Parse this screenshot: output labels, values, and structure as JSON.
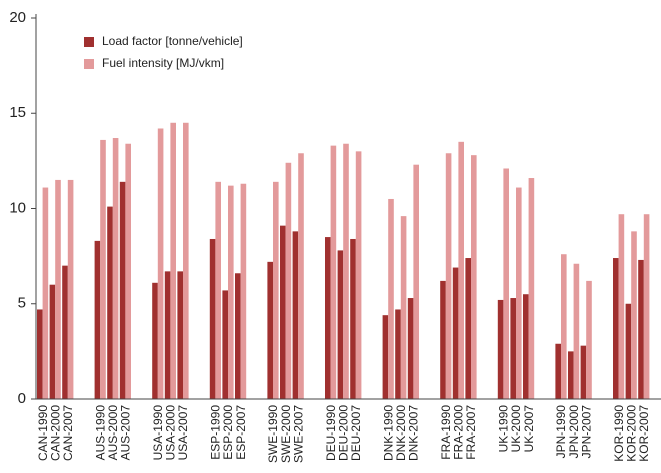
{
  "chart_data": {
    "type": "bar",
    "categories": [
      "CAN-1990",
      "CAN-2000",
      "CAN-2007",
      "AUS-1990",
      "AUS-2000",
      "AUS-2007",
      "USA-1990",
      "USA-2000",
      "USA-2007",
      "ESP-1990",
      "ESP-2000",
      "ESP-2007",
      "SWE-1990",
      "SWE-2000",
      "SWE-2007",
      "DEU-1990",
      "DEU-2000",
      "DEU-2007",
      "DNK-1990",
      "DNK-2000",
      "DNK-2007",
      "FRA-1990",
      "FRA-2000",
      "FRA-2007",
      "UK-1990",
      "UK-2000",
      "UK-2007",
      "JPN-1990",
      "JPN-2000",
      "JPN-2007",
      "KOR-1990",
      "KOR-2000",
      "KOR-2007"
    ],
    "series": [
      {
        "name": "Load factor [tonne/vehicle]",
        "color": "#a0302f",
        "values": [
          4.7,
          6.0,
          7.0,
          8.3,
          10.1,
          11.4,
          6.1,
          6.7,
          6.7,
          8.4,
          5.7,
          6.6,
          7.2,
          9.1,
          8.8,
          8.5,
          7.8,
          8.4,
          4.4,
          4.7,
          5.3,
          6.2,
          6.9,
          7.4,
          5.2,
          5.3,
          5.5,
          2.9,
          2.5,
          2.8,
          7.4,
          5.0,
          7.3
        ]
      },
      {
        "name": "Fuel intensity [MJ/vkm]",
        "color": "#e39a9b",
        "values": [
          11.1,
          11.5,
          11.5,
          13.6,
          13.7,
          13.4,
          14.2,
          14.5,
          14.5,
          11.4,
          11.2,
          11.3,
          11.4,
          12.4,
          12.9,
          13.3,
          13.4,
          13.0,
          10.5,
          9.6,
          12.3,
          12.9,
          13.5,
          12.8,
          12.1,
          11.1,
          11.6,
          7.6,
          7.1,
          6.2,
          9.7,
          8.8,
          9.7
        ]
      }
    ],
    "ylim": [
      0,
      20
    ],
    "yticks": [
      0,
      5,
      10,
      15,
      20
    ],
    "grid": false,
    "legend": "upper left"
  }
}
